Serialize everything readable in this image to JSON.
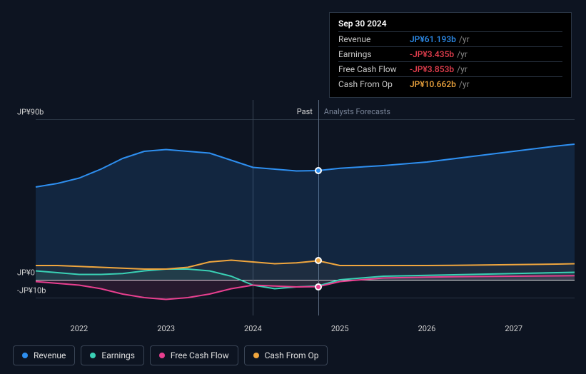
{
  "chart": {
    "type": "line",
    "background_color": "#0d1421",
    "grid_color": "#2a3544",
    "zero_line_color": "#ffffff",
    "text_color": "#d0d0d0",
    "past_label": "Past",
    "forecast_label": "Analysts Forecasts",
    "past_label_color": "#d8d8d8",
    "forecast_label_color": "#7a8599",
    "x_years": [
      2022,
      2023,
      2024,
      2025,
      2026,
      2027
    ],
    "y_ticks": [
      {
        "value": 90,
        "label": "JP¥90b"
      },
      {
        "value": 0,
        "label": "JP¥0"
      },
      {
        "value": -10,
        "label": "-JP¥10b"
      }
    ],
    "y_min": -20,
    "y_max": 100,
    "x_min": 2021.5,
    "x_max": 2027.7,
    "divide_x": 2024.0,
    "highlight_x": 2024.75,
    "series": [
      {
        "id": "revenue",
        "label": "Revenue",
        "color": "#2e8ff0",
        "fill_opacity": 0.15,
        "line_width": 2,
        "points": [
          [
            2021.5,
            52
          ],
          [
            2021.75,
            54
          ],
          [
            2022.0,
            57
          ],
          [
            2022.25,
            62
          ],
          [
            2022.5,
            68
          ],
          [
            2022.75,
            72
          ],
          [
            2023.0,
            73
          ],
          [
            2023.25,
            72
          ],
          [
            2023.5,
            71
          ],
          [
            2023.75,
            67
          ],
          [
            2024.0,
            63
          ],
          [
            2024.25,
            62
          ],
          [
            2024.5,
            61
          ],
          [
            2024.75,
            61.193
          ],
          [
            2025.0,
            62.5
          ],
          [
            2025.5,
            64
          ],
          [
            2026.0,
            66
          ],
          [
            2026.5,
            69
          ],
          [
            2027.0,
            72
          ],
          [
            2027.5,
            75
          ],
          [
            2027.7,
            76
          ]
        ]
      },
      {
        "id": "earnings",
        "label": "Earnings",
        "color": "#3ad1b5",
        "fill_opacity": 0.1,
        "line_width": 2,
        "points": [
          [
            2021.5,
            5
          ],
          [
            2021.75,
            4
          ],
          [
            2022.0,
            3
          ],
          [
            2022.25,
            3
          ],
          [
            2022.5,
            3.5
          ],
          [
            2022.75,
            5
          ],
          [
            2023.0,
            6
          ],
          [
            2023.25,
            6
          ],
          [
            2023.5,
            5
          ],
          [
            2023.75,
            2
          ],
          [
            2024.0,
            -3
          ],
          [
            2024.25,
            -5
          ],
          [
            2024.5,
            -4
          ],
          [
            2024.75,
            -3.435
          ],
          [
            2025.0,
            0
          ],
          [
            2025.5,
            2
          ],
          [
            2026.0,
            2.5
          ],
          [
            2026.5,
            3
          ],
          [
            2027.0,
            3.5
          ],
          [
            2027.5,
            4
          ],
          [
            2027.7,
            4.2
          ]
        ]
      },
      {
        "id": "fcf",
        "label": "Free Cash Flow",
        "color": "#e83f8f",
        "fill_opacity": 0.12,
        "line_width": 2,
        "points": [
          [
            2021.5,
            -1
          ],
          [
            2021.75,
            -2
          ],
          [
            2022.0,
            -3
          ],
          [
            2022.25,
            -5
          ],
          [
            2022.5,
            -8
          ],
          [
            2022.75,
            -10
          ],
          [
            2023.0,
            -11
          ],
          [
            2023.25,
            -10
          ],
          [
            2023.5,
            -8
          ],
          [
            2023.75,
            -5
          ],
          [
            2024.0,
            -3
          ],
          [
            2024.25,
            -3.5
          ],
          [
            2024.5,
            -4
          ],
          [
            2024.75,
            -3.853
          ],
          [
            2025.0,
            -1
          ],
          [
            2025.5,
            1
          ],
          [
            2026.0,
            1.5
          ],
          [
            2026.5,
            1.8
          ],
          [
            2027.0,
            2
          ],
          [
            2027.5,
            2.2
          ],
          [
            2027.7,
            2.3
          ]
        ]
      },
      {
        "id": "cfo",
        "label": "Cash From Op",
        "color": "#f0a63e",
        "fill_opacity": 0.06,
        "line_width": 2,
        "points": [
          [
            2021.5,
            8
          ],
          [
            2021.75,
            8
          ],
          [
            2022.0,
            7.5
          ],
          [
            2022.25,
            7
          ],
          [
            2022.5,
            6.5
          ],
          [
            2022.75,
            6
          ],
          [
            2023.0,
            6
          ],
          [
            2023.25,
            7
          ],
          [
            2023.5,
            10
          ],
          [
            2023.75,
            11
          ],
          [
            2024.0,
            10
          ],
          [
            2024.25,
            9
          ],
          [
            2024.5,
            9.5
          ],
          [
            2024.75,
            10.662
          ],
          [
            2025.0,
            8
          ],
          [
            2025.5,
            8
          ],
          [
            2026.0,
            8
          ],
          [
            2026.5,
            8.2
          ],
          [
            2027.0,
            8.5
          ],
          [
            2027.5,
            8.8
          ],
          [
            2027.7,
            9
          ]
        ]
      }
    ],
    "markers": [
      {
        "series": "revenue",
        "x": 2024.75,
        "y": 61.193
      },
      {
        "series": "cfo",
        "x": 2024.75,
        "y": 10.662
      },
      {
        "series": "fcf",
        "x": 2024.75,
        "y": -3.853
      }
    ]
  },
  "tooltip": {
    "title": "Sep 30 2024",
    "unit": "/yr",
    "rows": [
      {
        "label": "Revenue",
        "value": "JP¥61.193b",
        "color": "#2e8ff0"
      },
      {
        "label": "Earnings",
        "value": "-JP¥3.435b",
        "color": "#e83f4f"
      },
      {
        "label": "Free Cash Flow",
        "value": "-JP¥3.853b",
        "color": "#e83f4f"
      },
      {
        "label": "Cash From Op",
        "value": "JP¥10.662b",
        "color": "#f0a63e"
      }
    ]
  },
  "legend": [
    {
      "id": "revenue",
      "label": "Revenue",
      "color": "#2e8ff0"
    },
    {
      "id": "earnings",
      "label": "Earnings",
      "color": "#3ad1b5"
    },
    {
      "id": "fcf",
      "label": "Free Cash Flow",
      "color": "#e83f8f"
    },
    {
      "id": "cfo",
      "label": "Cash From Op",
      "color": "#f0a63e"
    }
  ]
}
